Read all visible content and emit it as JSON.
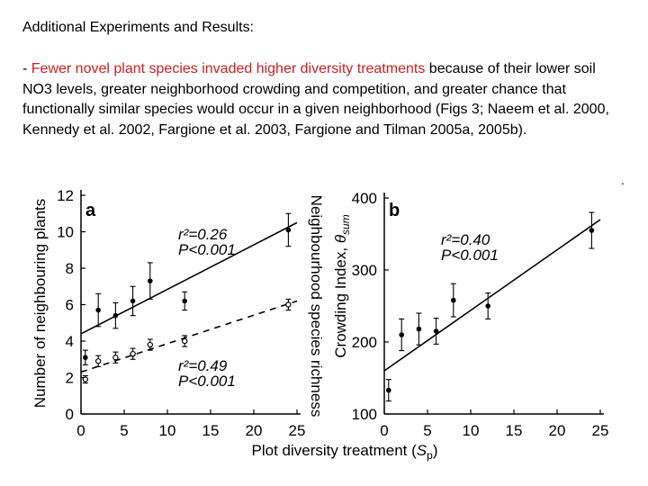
{
  "heading": "Additional Experiments and Results:",
  "paragraph": {
    "prefix": "- ",
    "highlight": "Fewer novel plant species invaded higher diversity treatments",
    "highlight_color": "#cc1f1f",
    "rest": " because of their lower soil NO3 levels, greater neighborhood crowding and competition, and greater chance that functionally similar species would occur in a given neighborhood (Figs 3; Naeem et al. 2000, Kennedy et al. 2002, Fargione et al. 2003, Fargione and Tilman 2005a, 2005b)."
  },
  "stray_mark": ".",
  "figure": {
    "shared_xlabel_main": "Plot diversity treatment (",
    "shared_xlabel_sym": "S",
    "shared_xlabel_sub": "p",
    "shared_xlabel_end": ")"
  },
  "chart_data": [
    {
      "type": "scatter",
      "panel_label": "a",
      "ylabel": "Number of neighbouring plants",
      "right_label": "Neighbourhood species richness",
      "xlim": [
        0,
        25
      ],
      "ylim": [
        0,
        12
      ],
      "xticks": [
        0,
        5,
        10,
        15,
        20,
        25
      ],
      "yticks": [
        0,
        2,
        4,
        6,
        8,
        10,
        12
      ],
      "series": [
        {
          "marker": "filled",
          "fit_style": "solid",
          "fit": [
            [
              0,
              4.4
            ],
            [
              25,
              10.5
            ]
          ],
          "points": [
            {
              "x": 0.5,
              "y": 3.1,
              "err": 0.4
            },
            {
              "x": 2,
              "y": 5.7,
              "err": 0.9
            },
            {
              "x": 4,
              "y": 5.4,
              "err": 0.7
            },
            {
              "x": 6,
              "y": 6.2,
              "err": 0.8
            },
            {
              "x": 8,
              "y": 7.3,
              "err": 1.0
            },
            {
              "x": 12,
              "y": 6.2,
              "err": 0.5
            },
            {
              "x": 24,
              "y": 10.1,
              "err": 0.9
            }
          ],
          "annotation_r2": "r²=0.26",
          "annotation_p": "P<0.001"
        },
        {
          "marker": "open",
          "fit_style": "dashed",
          "fit": [
            [
              0,
              2.3
            ],
            [
              25,
              6.2
            ]
          ],
          "points": [
            {
              "x": 0.5,
              "y": 1.9,
              "err": 0.2
            },
            {
              "x": 2,
              "y": 2.9,
              "err": 0.3
            },
            {
              "x": 4,
              "y": 3.1,
              "err": 0.3
            },
            {
              "x": 6,
              "y": 3.3,
              "err": 0.3
            },
            {
              "x": 8,
              "y": 3.8,
              "err": 0.3
            },
            {
              "x": 12,
              "y": 4.0,
              "err": 0.3
            },
            {
              "x": 24,
              "y": 6.0,
              "err": 0.3
            }
          ],
          "annotation_r2": "r²=0.49",
          "annotation_p": "P<0.001"
        }
      ]
    },
    {
      "type": "scatter",
      "panel_label": "b",
      "ylabel": "Crowding Index, θsum",
      "ylabel_main": "Crowding Index, ",
      "ylabel_theta": "θ",
      "ylabel_sub": "sum",
      "xlim": [
        0,
        25
      ],
      "ylim": [
        100,
        400
      ],
      "xticks": [
        0,
        5,
        10,
        15,
        20,
        25
      ],
      "yticks": [
        100,
        200,
        300,
        400
      ],
      "series": [
        {
          "marker": "filled",
          "fit_style": "solid",
          "fit": [
            [
              0,
              160
            ],
            [
              25,
              370
            ]
          ],
          "points": [
            {
              "x": 0.5,
              "y": 133,
              "err": 15
            },
            {
              "x": 2,
              "y": 210,
              "err": 22
            },
            {
              "x": 4,
              "y": 218,
              "err": 22
            },
            {
              "x": 6,
              "y": 215,
              "err": 18
            },
            {
              "x": 8,
              "y": 258,
              "err": 23
            },
            {
              "x": 12,
              "y": 250,
              "err": 18
            },
            {
              "x": 24,
              "y": 355,
              "err": 25
            }
          ],
          "annotation_r2": "r²=0.40",
          "annotation_p": "P<0.001"
        }
      ]
    }
  ]
}
